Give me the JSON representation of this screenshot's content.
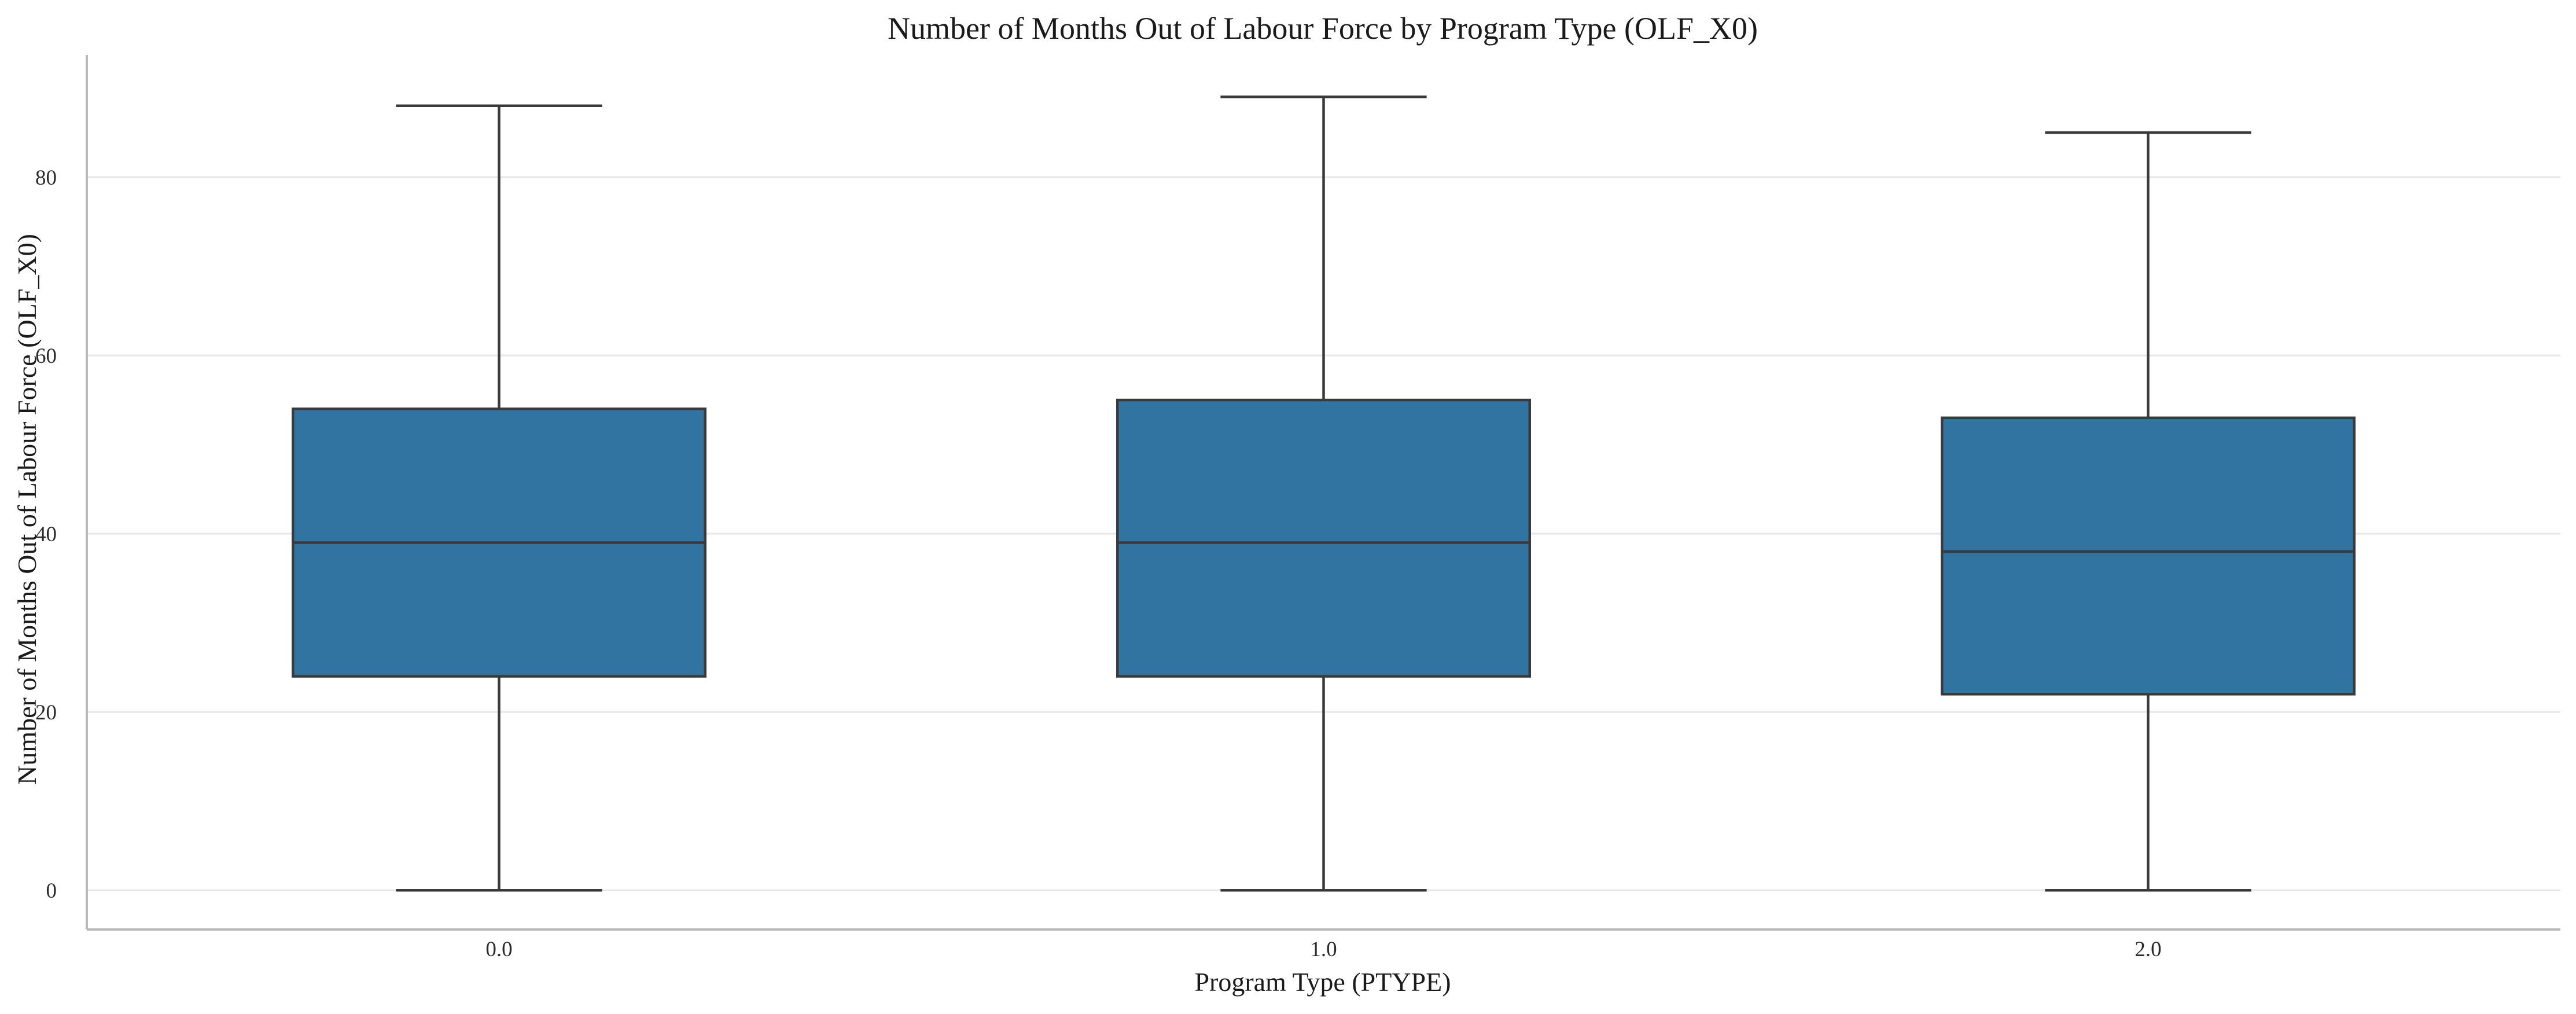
{
  "chart_data": {
    "type": "box",
    "title": "Number of Months Out of Labour Force by Program Type (OLF_X0)",
    "xlabel": "Program Type (PTYPE)",
    "ylabel": "Number of Months Out of Labour Force (OLF_X0)",
    "categories": [
      "0.0",
      "1.0",
      "2.0"
    ],
    "boxes": [
      {
        "category": "0.0",
        "whisker_low": 0,
        "q1": 24,
        "median": 39,
        "q3": 54,
        "whisker_high": 88
      },
      {
        "category": "1.0",
        "whisker_low": 0,
        "q1": 24,
        "median": 39,
        "q3": 55,
        "whisker_high": 89
      },
      {
        "category": "2.0",
        "whisker_low": 0,
        "q1": 22,
        "median": 38,
        "q3": 53,
        "whisker_high": 85
      }
    ],
    "yticks": [
      0,
      20,
      40,
      60,
      80
    ],
    "ylim": [
      -4.4,
      93.7
    ],
    "grid": "horizontal",
    "box_color": "#3274a1",
    "line_color": "#3a3a3a"
  }
}
